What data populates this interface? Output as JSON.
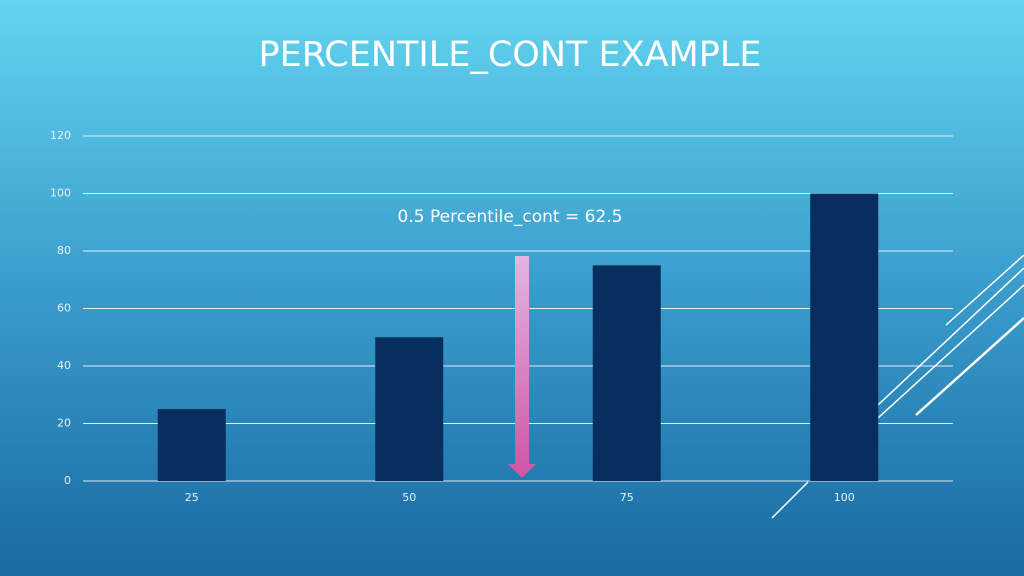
{
  "chart_data": {
    "type": "bar",
    "title": "PERCENTILE_CONT EXAMPLE",
    "annotation": "0.5 Percentile_cont = 62.5",
    "categories": [
      "25",
      "50",
      "75",
      "100"
    ],
    "values": [
      25,
      50,
      75,
      100
    ],
    "color": "#072e5e",
    "ylim": [
      0,
      120
    ],
    "yticks": [
      0,
      20,
      40,
      60,
      80,
      100,
      120
    ],
    "grid": true
  }
}
